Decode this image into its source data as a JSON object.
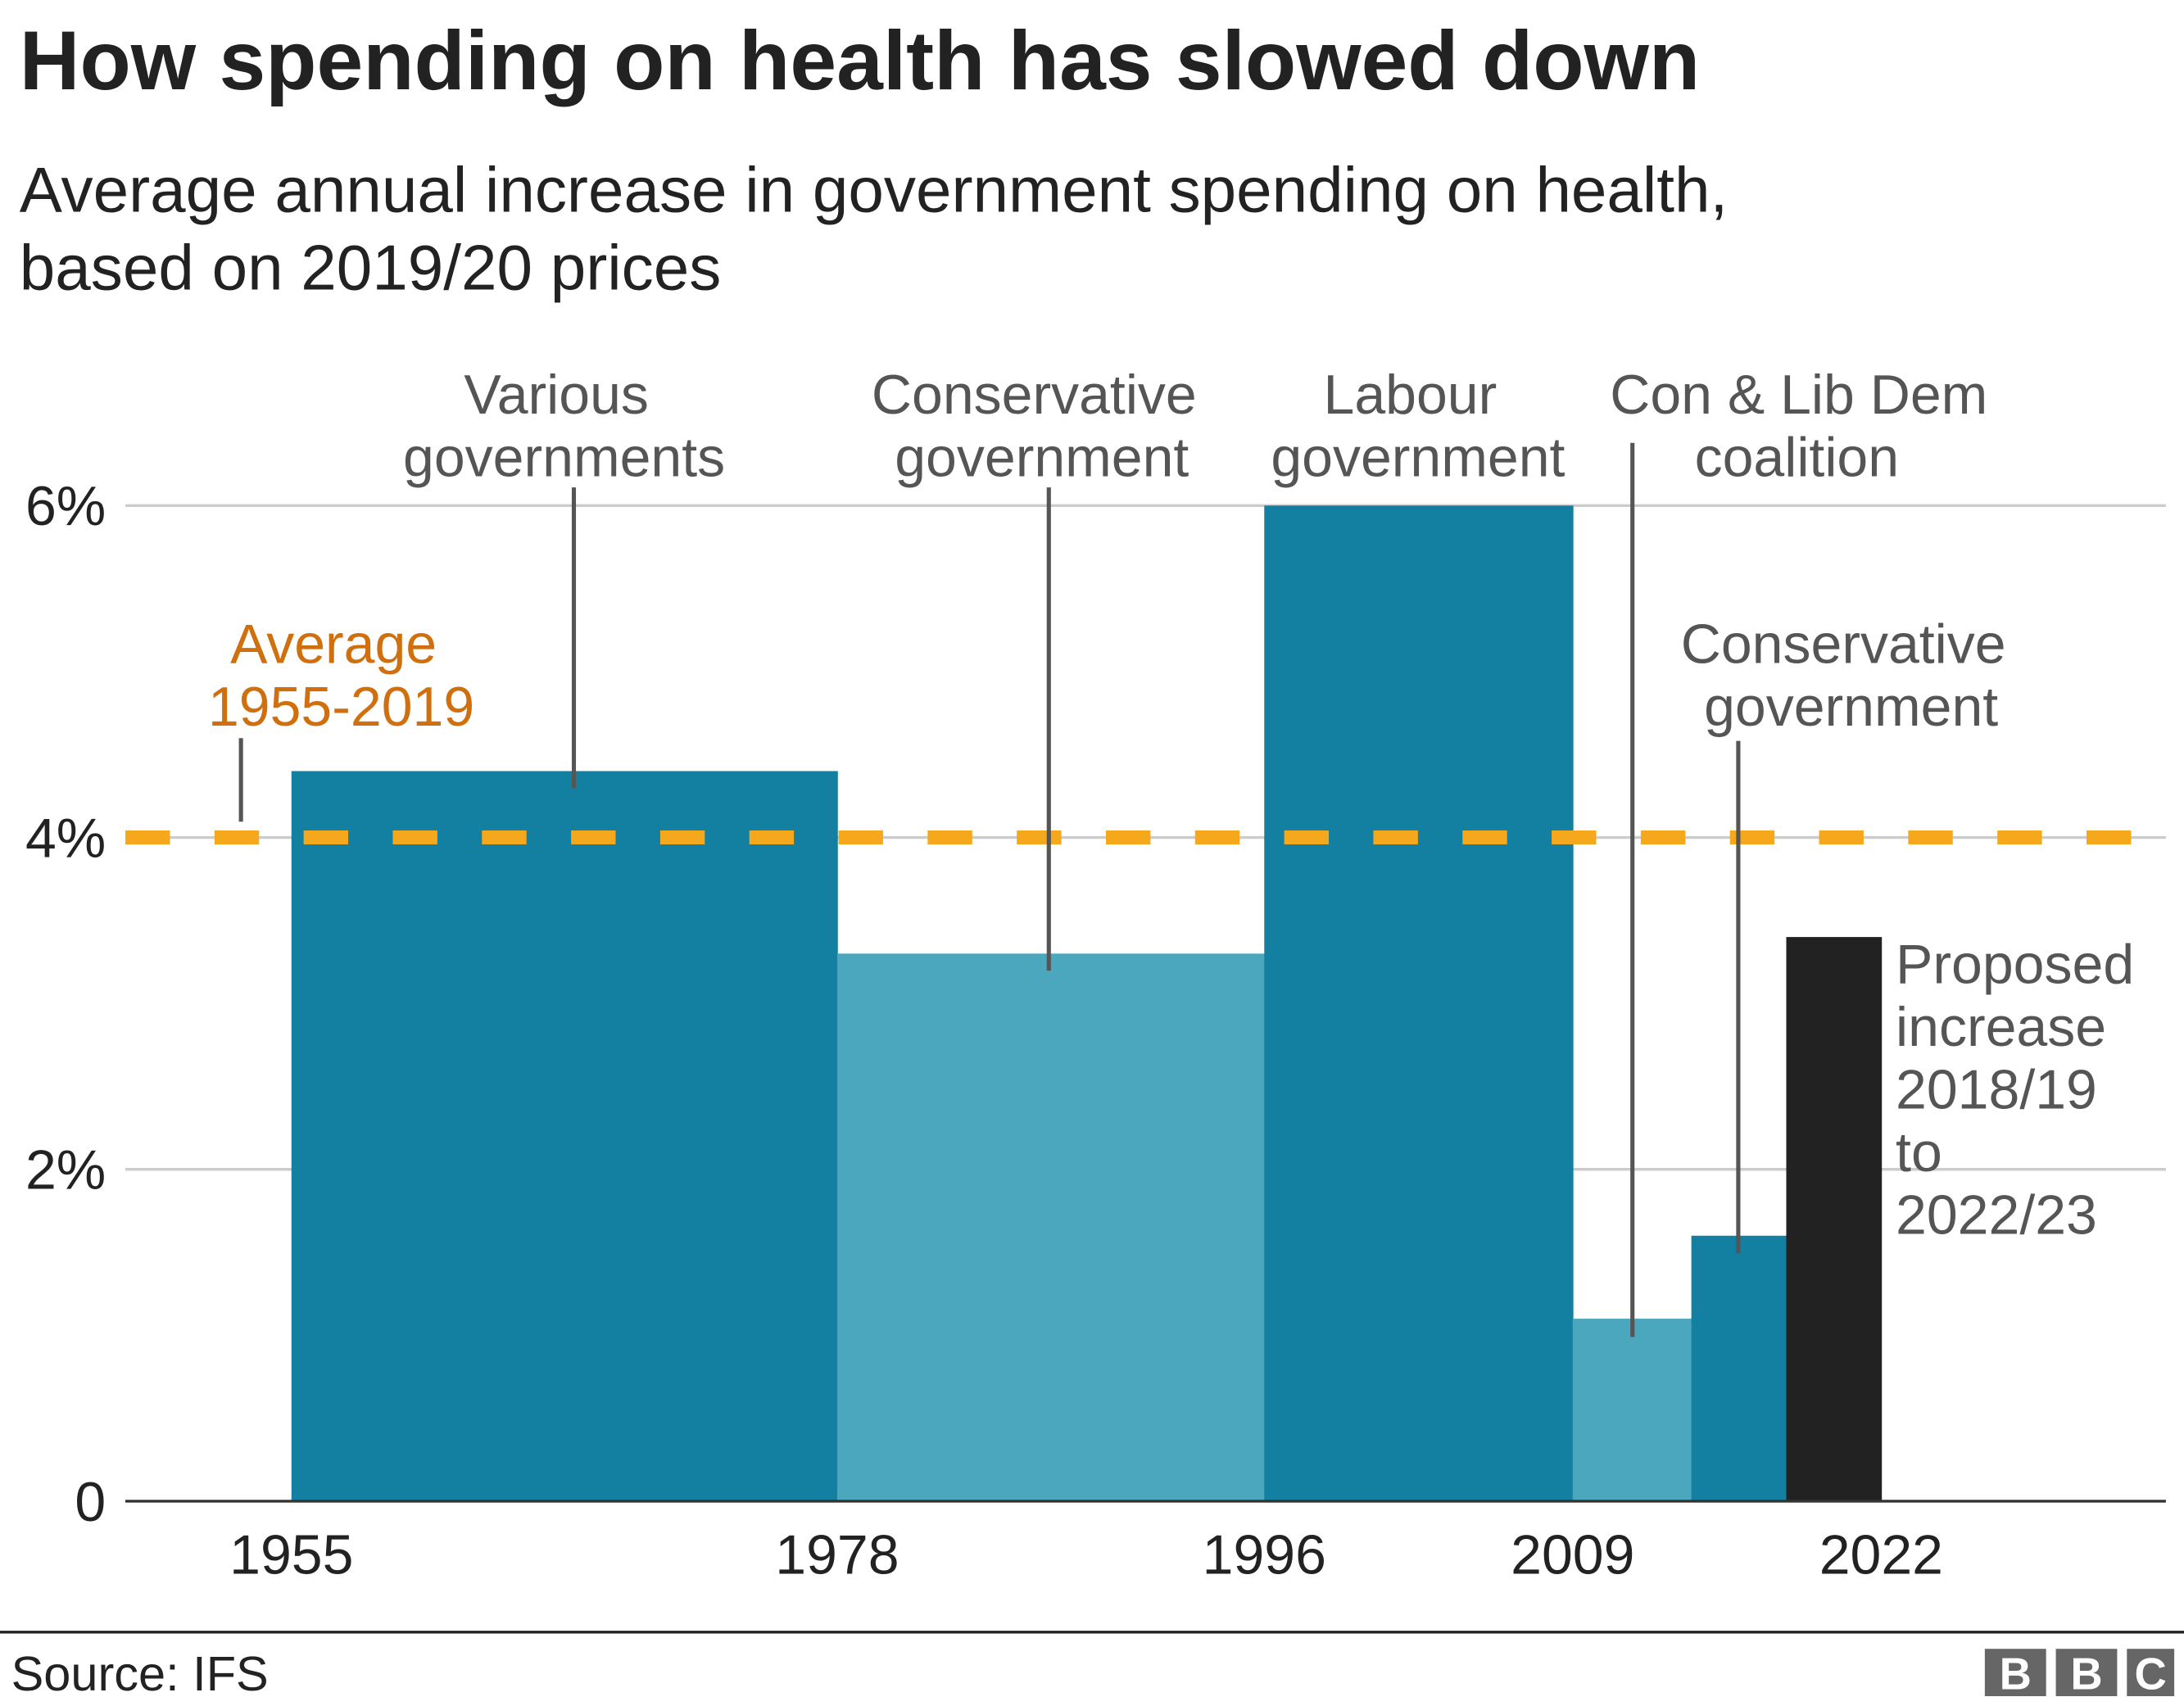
{
  "title": "How spending on health has slowed down",
  "subtitle_lines": [
    "Average annual increase in government spending on health,",
    "based on 2019/20 prices"
  ],
  "source": "Source: IFS",
  "logo": "BBC",
  "colors": {
    "dark_teal": "#1380a1",
    "light_teal": "#4ba7bd",
    "proposed": "#222222",
    "average_line": "#f5a81c",
    "average_label": "#d06f0e"
  },
  "chart_data": {
    "type": "bar",
    "xlim": [
      1948,
      2034
    ],
    "ylim": [
      0,
      6
    ],
    "grid": true,
    "y_ticks": [
      {
        "value": 0,
        "label": "0"
      },
      {
        "value": 2,
        "label": "2%"
      },
      {
        "value": 4,
        "label": "4%"
      },
      {
        "value": 6,
        "label": "6%"
      }
    ],
    "x_ticks": [
      1955,
      1978,
      1996,
      2009,
      2022
    ],
    "bars": [
      {
        "start": 1955,
        "end": 1978,
        "value": 4.4,
        "color": "#1380a1"
      },
      {
        "start": 1978,
        "end": 1996,
        "value": 3.3,
        "color": "#4ba7bd"
      },
      {
        "start": 1996,
        "end": 2009,
        "value": 6.0,
        "color": "#1380a1"
      },
      {
        "start": 2009,
        "end": 2014,
        "value": 1.1,
        "color": "#4ba7bd"
      },
      {
        "start": 2014,
        "end": 2018,
        "value": 1.6,
        "color": "#1380a1"
      },
      {
        "start": 2018,
        "end": 2022,
        "value": 3.4,
        "color": "#222222"
      }
    ],
    "average": {
      "value": 4.0,
      "label_lines": [
        "Average",
        "1955-2019"
      ]
    },
    "annotations": [
      {
        "lines": [
          "Various",
          "governments"
        ]
      },
      {
        "lines": [
          "Conservative",
          "government"
        ]
      },
      {
        "lines": [
          "Labour",
          "government"
        ]
      },
      {
        "lines": [
          "Con & Lib Dem",
          "coalition"
        ]
      },
      {
        "lines": [
          "Conservative",
          "government"
        ]
      },
      {
        "lines": [
          "Proposed",
          "increase",
          "2018/19",
          "to",
          "2022/23"
        ]
      }
    ]
  }
}
